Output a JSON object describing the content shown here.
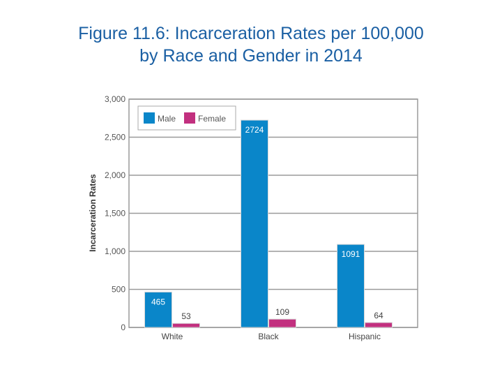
{
  "chart_data": {
    "type": "bar",
    "title_line1": "Figure 11.6: Incarceration Rates per 100,000",
    "title_line2": "by Race and Gender in 2014",
    "xlabel": "",
    "ylabel": "Incarceration Rates",
    "ylim": [
      0,
      3000
    ],
    "yticks": [
      0,
      500,
      1000,
      1500,
      2000,
      2500,
      3000
    ],
    "ytick_labels": [
      "0",
      "500",
      "1,000",
      "1,500",
      "2,000",
      "2,500",
      "3,000"
    ],
    "categories": [
      "White",
      "Black",
      "Hispanic"
    ],
    "series": [
      {
        "name": "Male",
        "values": [
          465,
          2724,
          1091
        ],
        "color": "#0a86c9"
      },
      {
        "name": "Female",
        "values": [
          53,
          109,
          64
        ],
        "color": "#c2307f"
      }
    ],
    "legend_position": "top-left",
    "grid": true
  }
}
